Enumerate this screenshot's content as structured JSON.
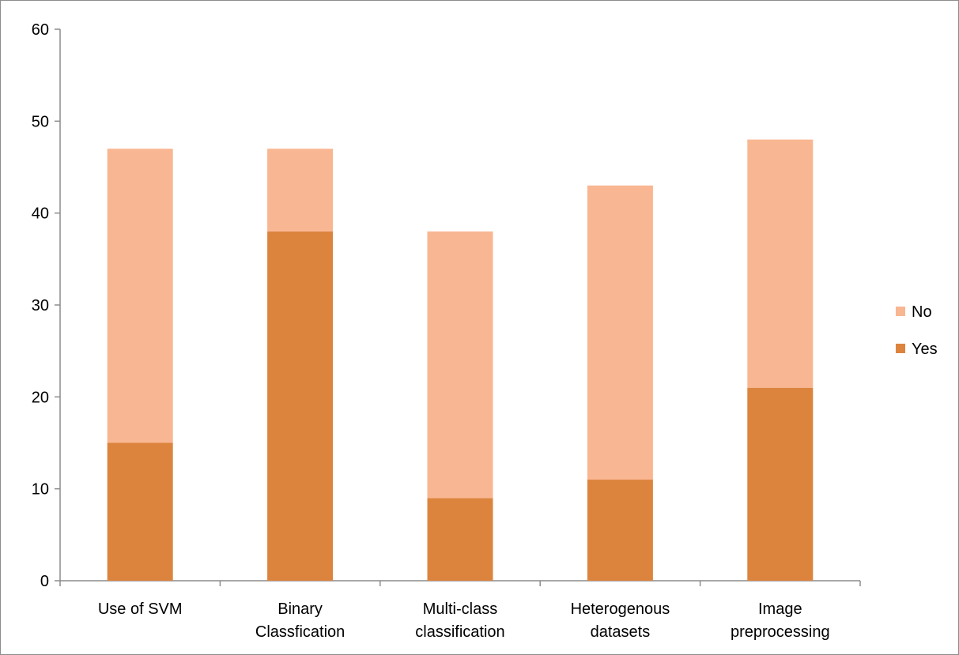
{
  "chart_data": {
    "type": "bar",
    "stacked": true,
    "categories": [
      [
        "Use of SVM"
      ],
      [
        "Binary",
        "Classfication"
      ],
      [
        "Multi-class",
        "classification"
      ],
      [
        "Heterogenous",
        "datasets"
      ],
      [
        "Image",
        "preprocessing"
      ]
    ],
    "series": [
      {
        "name": "Yes",
        "values": [
          15,
          38,
          9,
          11,
          21
        ],
        "color": "#DC843E"
      },
      {
        "name": "No",
        "values": [
          32,
          9,
          29,
          32,
          27
        ],
        "color": "#F9B692"
      }
    ],
    "title": "",
    "xlabel": "",
    "ylabel": "",
    "ylim": [
      0,
      60
    ],
    "yticks": [
      0,
      10,
      20,
      30,
      40,
      50,
      60
    ],
    "grid": false,
    "legend": {
      "placement": "right",
      "order": [
        "No",
        "Yes"
      ]
    }
  }
}
